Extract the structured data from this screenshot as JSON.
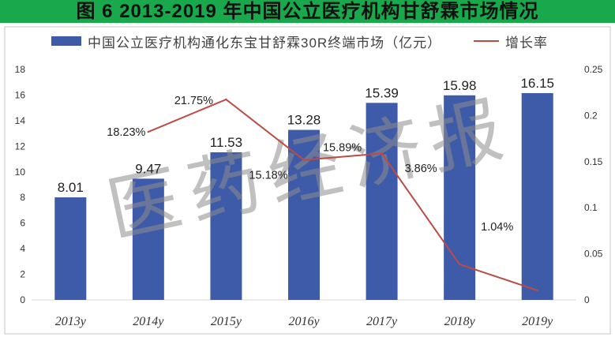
{
  "colors": {
    "header_bg": "#1aa84c",
    "axis_text": "#333333",
    "label_text": "#222222",
    "frame": "#c4c4c4",
    "axis_line": "#d9d9d9",
    "watermark": "#8c8c8c"
  },
  "watermark": "医药经济报",
  "chart_data": {
    "type": "bar",
    "title": "图 6 2013-2019 年中国公立医疗机构甘舒霖市场情况",
    "categories": [
      "2013y",
      "2014y",
      "2015y",
      "2016y",
      "2017y",
      "2018y",
      "2019y"
    ],
    "series": [
      {
        "name": "中国公立医疗机构通化东宝甘舒霖30R终端市场（亿元）",
        "type": "bar",
        "axis": "left",
        "color": "#3e5ba9",
        "values": [
          8.01,
          9.47,
          11.53,
          13.28,
          15.39,
          15.98,
          16.15
        ],
        "data_labels": [
          "8.01",
          "9.47",
          "11.53",
          "13.28",
          "15.39",
          "15.98",
          "16.15"
        ]
      },
      {
        "name": "增长率",
        "type": "line",
        "axis": "right",
        "color": "#bd4b45",
        "values": [
          null,
          0.1823,
          0.2175,
          0.1518,
          0.1589,
          0.0386,
          0.0104
        ],
        "data_labels": [
          null,
          "18.23%",
          "21.75%",
          "15.18%",
          "15.89%",
          "3.86%",
          "1.04%"
        ]
      }
    ],
    "ylim": [
      0,
      18
    ],
    "yticks": [
      0,
      2,
      4,
      6,
      8,
      10,
      12,
      14,
      16,
      18
    ],
    "y2lim": [
      0,
      0.25
    ],
    "y2ticks": [
      0,
      0.05,
      0.1,
      0.15,
      0.2,
      0.25
    ],
    "legend": "top",
    "grid": false
  }
}
